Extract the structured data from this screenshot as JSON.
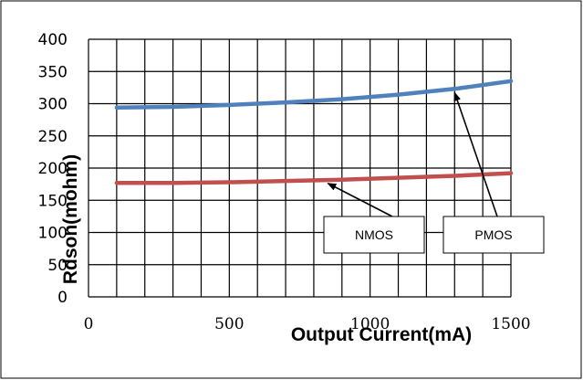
{
  "chart_data": {
    "type": "line",
    "title": "",
    "xlabel": "Output Current(mA)",
    "ylabel": "Rdson(mohm)",
    "xlim": [
      0,
      1500
    ],
    "ylim": [
      0,
      400
    ],
    "xticks": [
      0,
      500,
      1000,
      1500
    ],
    "yticks": [
      0,
      50,
      100,
      150,
      200,
      250,
      300,
      350,
      400
    ],
    "x_minor_step": 100,
    "grid": true,
    "series": [
      {
        "name": "NMOS",
        "color": "#c0504d",
        "x": [
          100,
          300,
          500,
          700,
          900,
          1100,
          1300,
          1500
        ],
        "y": [
          177,
          177,
          178,
          180,
          182,
          185,
          188,
          192
        ]
      },
      {
        "name": "PMOS",
        "color": "#4f81bd",
        "x": [
          100,
          300,
          500,
          700,
          900,
          1100,
          1300,
          1500
        ],
        "y": [
          294,
          295,
          298,
          302,
          307,
          314,
          323,
          335
        ]
      }
    ],
    "annotations": [
      {
        "text": "NMOS",
        "points_to_series": "NMOS",
        "x": 850,
        "y": 182
      },
      {
        "text": "PMOS",
        "points_to_series": "PMOS",
        "x": 1300,
        "y": 323
      }
    ]
  }
}
